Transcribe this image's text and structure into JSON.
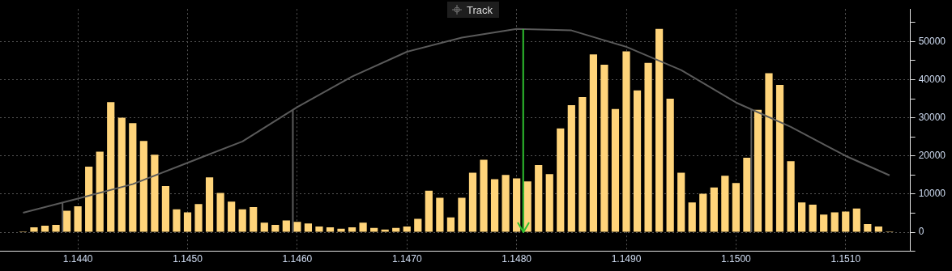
{
  "chart_data": {
    "type": "bar",
    "annotations": [
      "Track"
    ],
    "x": [
      1.1435,
      1.1436,
      1.1437,
      1.1438,
      1.1439,
      1.144,
      1.1441,
      1.1442,
      1.1443,
      1.1444,
      1.1445,
      1.1446,
      1.1447,
      1.1448,
      1.1449,
      1.145,
      1.1451,
      1.1452,
      1.1453,
      1.1454,
      1.1455,
      1.1456,
      1.1457,
      1.1458,
      1.1459,
      1.146,
      1.1461,
      1.1462,
      1.1463,
      1.1464,
      1.1465,
      1.1466,
      1.1467,
      1.1468,
      1.1469,
      1.147,
      1.1471,
      1.1472,
      1.1473,
      1.1474,
      1.1475,
      1.1476,
      1.1477,
      1.1478,
      1.1479,
      1.148,
      1.1481,
      1.1482,
      1.1483,
      1.1484,
      1.1485,
      1.1486,
      1.1487,
      1.1488,
      1.1489,
      1.149,
      1.1491,
      1.1492,
      1.1493,
      1.1494,
      1.1495,
      1.1496,
      1.1497,
      1.1498,
      1.1499,
      1.15,
      1.1501,
      1.1502,
      1.1503,
      1.1504,
      1.1505,
      1.1506,
      1.1507,
      1.1508,
      1.1509,
      1.151,
      1.1511,
      1.1512,
      1.1513,
      1.1514
    ],
    "series": [
      {
        "color": "#ffd47a",
        "values": [
          200,
          1300,
          1700,
          1900,
          5600,
          6800,
          17200,
          21100,
          34100,
          30000,
          28600,
          23900,
          20300,
          12100,
          6000,
          5200,
          7400,
          14400,
          10300,
          8000,
          6000,
          6600,
          2500,
          1900,
          3100,
          2700,
          2300,
          1500,
          1300,
          900,
          1300,
          2500,
          1100,
          700,
          1100,
          1500,
          3500,
          10900,
          9000,
          3900,
          9000,
          15600,
          19000,
          13900,
          15000,
          14100,
          13300,
          17600,
          15200,
          27200,
          33300,
          35400,
          46600,
          43900,
          32300,
          47400,
          37200,
          44400,
          53300,
          35000,
          15600,
          7800,
          10100,
          11700,
          14800,
          12900,
          19500,
          32100,
          41700,
          38600,
          18600,
          7800,
          7200,
          4600,
          5200,
          5400,
          6200,
          2100,
          1500,
          200
        ]
      },
      {
        "type": "line",
        "color": "#5a5a5a",
        "x": [
          1.1435,
          1.144,
          1.1445,
          1.145,
          1.1455,
          1.146,
          1.1465,
          1.147,
          1.1475,
          1.148,
          1.1485,
          1.149,
          1.1495,
          1.15,
          1.1505,
          1.151,
          1.1514
        ],
        "values": [
          5100,
          8800,
          12600,
          18200,
          23800,
          32800,
          40800,
          47300,
          51000,
          53300,
          52900,
          48600,
          42500,
          34000,
          27600,
          20000,
          14900
        ]
      }
    ],
    "ref_lines": [
      {
        "axis": "x",
        "value": 1.14386,
        "color": "#5a5a5a"
      },
      {
        "axis": "x",
        "value": 1.14596,
        "color": "#5a5a5a"
      },
      {
        "axis": "x",
        "value": 1.15014,
        "color": "#5a5a5a"
      },
      {
        "axis": "x",
        "value": 1.14806,
        "color": "#2fbf2f"
      }
    ],
    "xlim": [
      1.14329,
      1.15159
    ],
    "xticks": [
      {
        "value": 1.144,
        "label": "1.1440"
      },
      {
        "value": 1.145,
        "label": "1.1450"
      },
      {
        "value": 1.146,
        "label": "1.1460"
      },
      {
        "value": 1.147,
        "label": "1.1470"
      },
      {
        "value": 1.148,
        "label": "1.1480"
      },
      {
        "value": 1.149,
        "label": "1.1490"
      },
      {
        "value": 1.15,
        "label": "1.1500"
      },
      {
        "value": 1.151,
        "label": "1.1510"
      }
    ],
    "ylim": [
      -5000,
      58500
    ],
    "yticks": [
      {
        "value": -5000,
        "label": null
      },
      0,
      {
        "value": 5000,
        "label": null
      },
      10000,
      {
        "value": 15000,
        "label": null
      },
      20000,
      {
        "value": 25000,
        "label": null
      },
      30000,
      {
        "value": 35000,
        "label": null
      },
      40000,
      {
        "value": 45000,
        "label": null
      },
      50000,
      {
        "value": 55000,
        "label": null
      }
    ],
    "grid": true,
    "legend": false,
    "marker": "none",
    "line_style": "solid"
  }
}
